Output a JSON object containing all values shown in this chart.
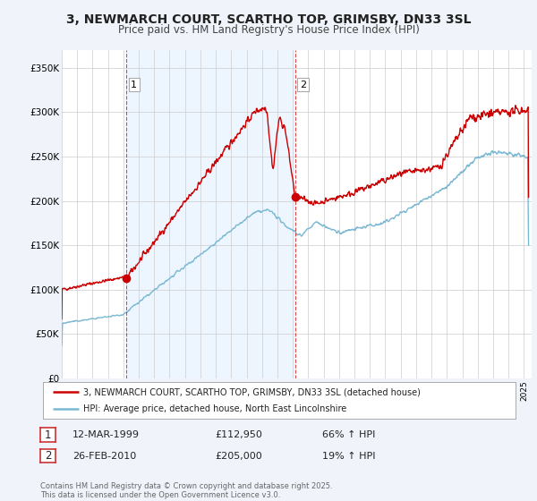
{
  "title_line1": "3, NEWMARCH COURT, SCARTHO TOP, GRIMSBY, DN33 3SL",
  "title_line2": "Price paid vs. HM Land Registry's House Price Index (HPI)",
  "background_color": "#f0f4fa",
  "plot_bg_color": "#ffffff",
  "red_line_color": "#cc0000",
  "blue_line_color": "#7ab8d4",
  "marker1_date_x": 1999.19,
  "marker1_price": 112950,
  "marker2_date_x": 2010.15,
  "marker2_price": 205000,
  "vline1_x": 1999.19,
  "vline2_x": 2010.15,
  "ylim_min": 0,
  "ylim_max": 370000,
  "xlim_min": 1995.0,
  "xlim_max": 2025.5,
  "legend_line1": "3, NEWMARCH COURT, SCARTHO TOP, GRIMSBY, DN33 3SL (detached house)",
  "legend_line2": "HPI: Average price, detached house, North East Lincolnshire",
  "table_row1_num": "1",
  "table_row1_date": "12-MAR-1999",
  "table_row1_price": "£112,950",
  "table_row1_hpi": "66% ↑ HPI",
  "table_row2_num": "2",
  "table_row2_date": "26-FEB-2010",
  "table_row2_price": "£205,000",
  "table_row2_hpi": "19% ↑ HPI",
  "footer_text": "Contains HM Land Registry data © Crown copyright and database right 2025.\nThis data is licensed under the Open Government Licence v3.0.",
  "yticks": [
    0,
    50000,
    100000,
    150000,
    200000,
    250000,
    300000,
    350000
  ],
  "ytick_labels": [
    "£0",
    "£50K",
    "£100K",
    "£150K",
    "£200K",
    "£250K",
    "£300K",
    "£350K"
  ],
  "span_color": "#ddeeff",
  "span_alpha": 0.5
}
